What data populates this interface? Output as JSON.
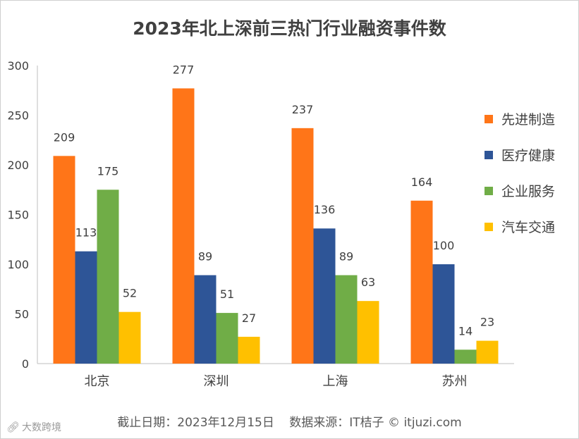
{
  "title": "2023年北上深前三热门行业融资事件数",
  "footer": {
    "date": "截止日期：2023年12月15日",
    "source": "数据来源：IT桔子 © itjuzi.com"
  },
  "watermark": {
    "text": "大数跨境",
    "icon": "link-logo-icon"
  },
  "chart_data": {
    "type": "bar",
    "categories": [
      "北京",
      "深圳",
      "上海",
      "苏州"
    ],
    "series": [
      {
        "name": "先进制造",
        "color": "#ff7518",
        "values": [
          209,
          277,
          237,
          164
        ]
      },
      {
        "name": "医疗健康",
        "color": "#2e5597",
        "values": [
          113,
          89,
          136,
          100
        ]
      },
      {
        "name": "企业服务",
        "color": "#70ad47",
        "values": [
          175,
          51,
          89,
          14
        ]
      },
      {
        "name": "汽车交通",
        "color": "#ffc000",
        "values": [
          52,
          27,
          63,
          23
        ]
      }
    ],
    "yticks": [
      "0",
      "50",
      "100",
      "150",
      "200",
      "250",
      "300"
    ],
    "ylim": [
      0,
      300
    ],
    "legend_position": "right",
    "grid": false
  }
}
